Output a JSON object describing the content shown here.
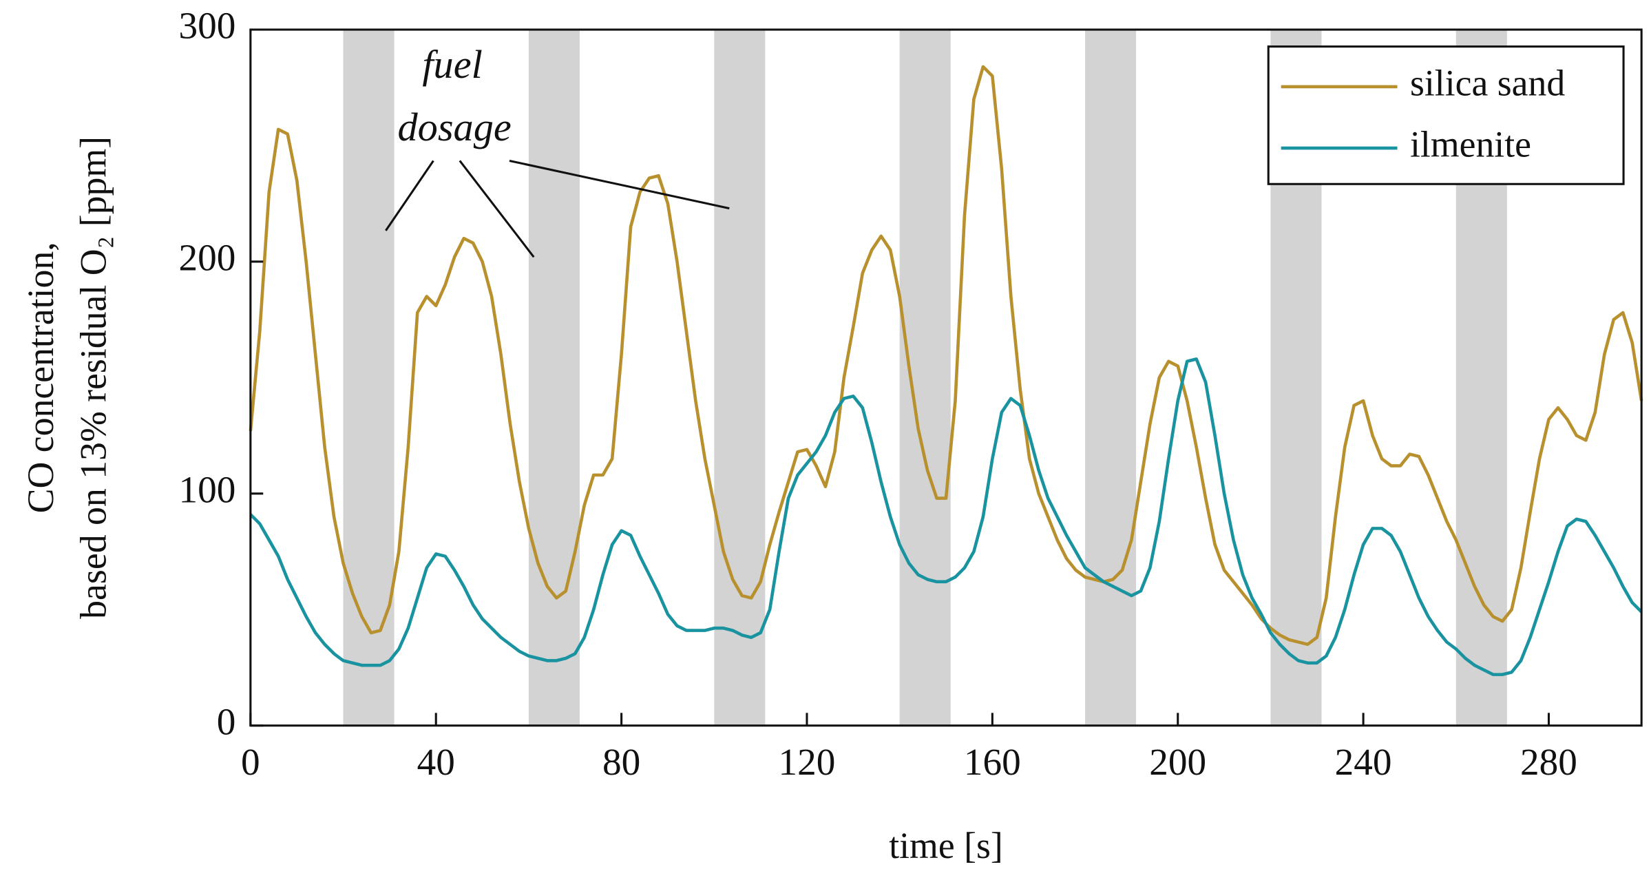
{
  "chart_data": {
    "type": "line",
    "xlabel": "time [s]",
    "ylabel": [
      "CO concentration,",
      "based on 13% residual O₂ [ppm]"
    ],
    "annotation": [
      "fuel",
      "dosage"
    ],
    "xlim": [
      0,
      300
    ],
    "ylim": [
      0,
      300
    ],
    "xticks": [
      0,
      40,
      80,
      120,
      160,
      200,
      240,
      280
    ],
    "yticks": [
      0,
      100,
      200,
      300
    ],
    "legend": "upper right",
    "shaded_intervals": [
      [
        20,
        31
      ],
      [
        60,
        71
      ],
      [
        100,
        111
      ],
      [
        140,
        151
      ],
      [
        180,
        191
      ],
      [
        220,
        231
      ],
      [
        260,
        271
      ]
    ],
    "shade_color": "#d3d3d3",
    "x": [
      0,
      2,
      4,
      6,
      8,
      10,
      12,
      14,
      16,
      18,
      20,
      22,
      24,
      26,
      28,
      30,
      32,
      34,
      36,
      38,
      40,
      42,
      44,
      46,
      48,
      50,
      52,
      54,
      56,
      58,
      60,
      62,
      64,
      66,
      68,
      70,
      72,
      74,
      76,
      78,
      80,
      82,
      84,
      86,
      88,
      90,
      92,
      94,
      96,
      98,
      100,
      102,
      104,
      106,
      108,
      110,
      112,
      114,
      116,
      118,
      120,
      122,
      124,
      126,
      128,
      130,
      132,
      134,
      136,
      138,
      140,
      142,
      144,
      146,
      148,
      150,
      152,
      154,
      156,
      158,
      160,
      162,
      164,
      166,
      168,
      170,
      172,
      174,
      176,
      178,
      180,
      182,
      184,
      186,
      188,
      190,
      192,
      194,
      196,
      198,
      200,
      202,
      204,
      206,
      208,
      210,
      212,
      214,
      216,
      218,
      220,
      222,
      224,
      226,
      228,
      230,
      232,
      234,
      236,
      238,
      240,
      242,
      244,
      246,
      248,
      250,
      252,
      254,
      256,
      258,
      260,
      262,
      264,
      266,
      268,
      270,
      272,
      274,
      276,
      278,
      280,
      282,
      284,
      286,
      288,
      290,
      292,
      294,
      296,
      298,
      300
    ],
    "series": [
      {
        "name": "silica sand",
        "color": "#b8902e",
        "values": [
          127,
          170,
          230,
          257,
          255,
          235,
          200,
          160,
          120,
          90,
          70,
          57,
          47,
          40,
          41,
          52,
          75,
          120,
          178,
          185,
          181,
          190,
          202,
          210,
          208,
          200,
          185,
          160,
          130,
          105,
          85,
          70,
          60,
          55,
          58,
          75,
          95,
          108,
          108,
          115,
          160,
          215,
          230,
          236,
          237,
          225,
          200,
          170,
          140,
          115,
          95,
          75,
          63,
          56,
          55,
          62,
          78,
          92,
          105,
          118,
          119,
          112,
          103,
          118,
          150,
          172,
          195,
          205,
          211,
          205,
          185,
          155,
          128,
          110,
          98,
          98,
          140,
          220,
          270,
          284,
          280,
          240,
          185,
          145,
          115,
          100,
          90,
          80,
          72,
          67,
          64,
          63,
          62,
          63,
          67,
          80,
          105,
          130,
          150,
          157,
          155,
          140,
          120,
          98,
          78,
          67,
          62,
          57,
          52,
          46,
          42,
          39,
          37,
          36,
          35,
          38,
          55,
          90,
          120,
          138,
          140,
          125,
          115,
          112,
          112,
          117,
          116,
          108,
          98,
          88,
          80,
          70,
          60,
          52,
          47,
          45,
          50,
          68,
          92,
          115,
          132,
          137,
          132,
          125,
          123,
          135,
          160,
          175,
          178,
          165,
          140
        ]
      },
      {
        "name": "ilmenite",
        "color": "#1a93a0",
        "values": [
          91,
          87,
          80,
          73,
          63,
          55,
          47,
          40,
          35,
          31,
          28,
          27,
          26,
          26,
          26,
          28,
          33,
          42,
          55,
          68,
          74,
          73,
          67,
          60,
          52,
          46,
          42,
          38,
          35,
          32,
          30,
          29,
          28,
          28,
          29,
          31,
          38,
          50,
          65,
          78,
          84,
          82,
          73,
          65,
          57,
          48,
          43,
          41,
          41,
          41,
          42,
          42,
          41,
          39,
          38,
          40,
          50,
          75,
          98,
          108,
          113,
          118,
          125,
          135,
          141,
          142,
          137,
          122,
          105,
          90,
          78,
          70,
          65,
          63,
          62,
          62,
          64,
          68,
          75,
          90,
          115,
          135,
          141,
          138,
          125,
          110,
          98,
          90,
          82,
          75,
          68,
          65,
          62,
          60,
          58,
          56,
          58,
          68,
          88,
          115,
          140,
          157,
          158,
          148,
          125,
          100,
          80,
          65,
          55,
          48,
          40,
          35,
          31,
          28,
          27,
          27,
          30,
          38,
          50,
          65,
          78,
          85,
          85,
          82,
          75,
          65,
          55,
          47,
          41,
          36,
          33,
          29,
          26,
          24,
          22,
          22,
          23,
          28,
          38,
          50,
          62,
          75,
          86,
          89,
          88,
          82,
          75,
          68,
          60,
          53,
          49
        ]
      }
    ]
  }
}
